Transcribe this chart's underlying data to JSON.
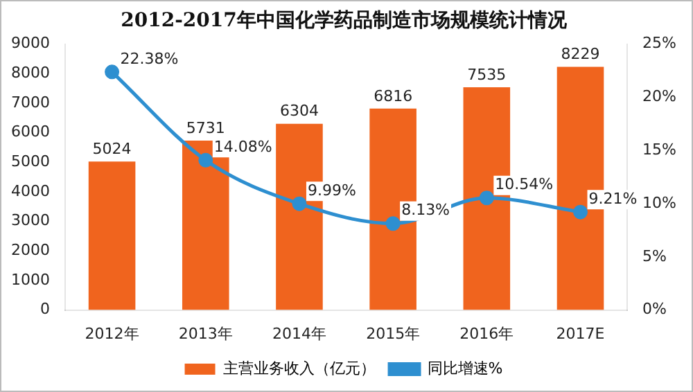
{
  "chart_data": {
    "type": "bar",
    "title": "2012-2017年中国化学药品制造市场规模统计情况",
    "categories": [
      "2012年",
      "2013年",
      "2014年",
      "2015年",
      "2016年",
      "2017E"
    ],
    "series": [
      {
        "name": "主营业务收入（亿元）",
        "color": "#f0641e",
        "values": [
          5024,
          5731,
          6304,
          6816,
          7535,
          8229
        ],
        "value_labels": [
          "5024",
          "5731",
          "6304",
          "6816",
          "7535",
          "8229"
        ]
      },
      {
        "name": "同比增速%",
        "type": "line",
        "axis": "y2",
        "color": "#2e8fd0",
        "values": [
          22.38,
          14.08,
          9.99,
          8.13,
          10.54,
          9.21
        ],
        "value_labels": [
          "22.38%",
          "14.08%",
          "9.99%",
          "8.13%",
          "10.54%",
          "9.21%"
        ]
      }
    ],
    "ylim": [
      0,
      9000
    ],
    "yticks": [
      0,
      1000,
      2000,
      3000,
      4000,
      5000,
      6000,
      7000,
      8000,
      9000
    ],
    "y2lim": [
      0,
      25
    ],
    "y2ticks": [
      {
        "value": 0,
        "label": "0%"
      },
      {
        "value": 5,
        "label": "5%"
      },
      {
        "value": 10,
        "label": "10%"
      },
      {
        "value": 15,
        "label": "15%"
      },
      {
        "value": 20,
        "label": "20%"
      },
      {
        "value": 25,
        "label": "25%"
      }
    ],
    "grid": false,
    "legend": "bottom",
    "marker": "circle",
    "line_style": "solid"
  }
}
